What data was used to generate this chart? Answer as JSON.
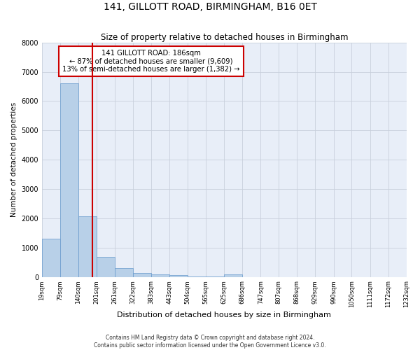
{
  "title": "141, GILLOTT ROAD, BIRMINGHAM, B16 0ET",
  "subtitle": "Size of property relative to detached houses in Birmingham",
  "xlabel": "Distribution of detached houses by size in Birmingham",
  "ylabel": "Number of detached properties",
  "property_size": 186,
  "property_label": "141 GILLOTT ROAD: 186sqm",
  "annotation_line1": "← 87% of detached houses are smaller (9,609)",
  "annotation_line2": "13% of semi-detached houses are larger (1,382) →",
  "footer_line1": "Contains HM Land Registry data © Crown copyright and database right 2024.",
  "footer_line2": "Contains public sector information licensed under the Open Government Licence v3.0.",
  "bar_color": "#b8d0e8",
  "bar_edge_color": "#6699cc",
  "vline_color": "#cc0000",
  "annotation_box_color": "#cc0000",
  "background_color": "#e8eef8",
  "grid_color": "#c8d0dc",
  "bin_edges": [
    19,
    79,
    140,
    201,
    261,
    322,
    383,
    443,
    504,
    565,
    625,
    686,
    747,
    807,
    868,
    929,
    990,
    1050,
    1111,
    1172,
    1232
  ],
  "bin_heights": [
    1300,
    6600,
    2080,
    680,
    290,
    130,
    90,
    60,
    5,
    5,
    90,
    0,
    0,
    0,
    0,
    0,
    0,
    0,
    0,
    0
  ],
  "ylim": [
    0,
    8000
  ],
  "xlim": [
    19,
    1232
  ]
}
